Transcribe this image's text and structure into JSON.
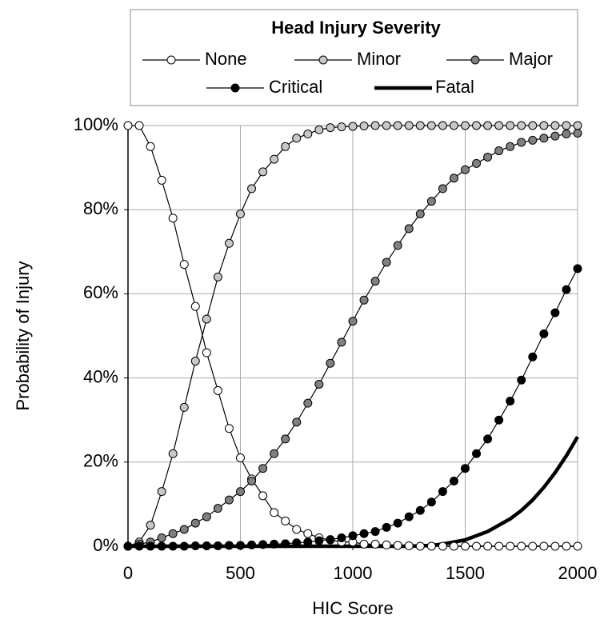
{
  "chart_data": {
    "type": "line",
    "legend_title": "Head Injury Severity",
    "x_label": "HIC Score",
    "y_label": "Probability of Injury",
    "x": [
      0,
      50,
      100,
      150,
      200,
      250,
      300,
      350,
      400,
      450,
      500,
      550,
      600,
      650,
      700,
      750,
      800,
      850,
      900,
      950,
      1000,
      1050,
      1100,
      1150,
      1200,
      1250,
      1300,
      1350,
      1400,
      1450,
      1500,
      1550,
      1600,
      1650,
      1700,
      1750,
      1800,
      1850,
      1900,
      1950,
      2000
    ],
    "series": [
      {
        "name": "None",
        "color": "#ffffff",
        "marker": true,
        "values": [
          100,
          100,
          95,
          87,
          78,
          67,
          57,
          46,
          37,
          28,
          21,
          16,
          12,
          8,
          6,
          4,
          3,
          2,
          1.5,
          1,
          1,
          0.5,
          0.5,
          0.3,
          0.2,
          0.1,
          0,
          0,
          0,
          0,
          0,
          0,
          0,
          0,
          0,
          0,
          0,
          0,
          0,
          0,
          0
        ]
      },
      {
        "name": "Minor",
        "color": "#c8c8c8",
        "marker": true,
        "values": [
          0,
          1,
          5,
          13,
          22,
          33,
          44,
          54,
          64,
          72,
          79,
          85,
          89,
          92,
          95,
          97,
          98,
          99,
          99.5,
          99.7,
          99.8,
          99.9,
          100,
          100,
          100,
          100,
          100,
          100,
          100,
          100,
          100,
          100,
          100,
          100,
          100,
          100,
          100,
          100,
          100,
          100,
          100
        ]
      },
      {
        "name": "Major",
        "color": "#808080",
        "marker": true,
        "values": [
          0,
          0.5,
          1,
          2,
          3,
          4,
          5.5,
          7,
          9,
          11,
          13,
          15.5,
          18.5,
          22,
          25.5,
          29.5,
          34,
          38.5,
          43.5,
          48.5,
          53.5,
          58.5,
          63,
          67.5,
          71.5,
          75.5,
          79,
          82,
          85,
          87.5,
          89.5,
          91,
          92.5,
          94,
          95,
          96,
          96.5,
          97,
          97.5,
          98,
          98.2
        ]
      },
      {
        "name": "Critical",
        "color": "#000000",
        "marker": true,
        "values": [
          0,
          0,
          0,
          0,
          0,
          0,
          0.1,
          0.1,
          0.1,
          0.2,
          0.2,
          0.3,
          0.4,
          0.5,
          0.6,
          0.8,
          1,
          1.3,
          1.6,
          2,
          2.5,
          3,
          3.5,
          4.5,
          5.5,
          7,
          8.5,
          10.5,
          13,
          15.5,
          18.5,
          22,
          25.5,
          30,
          34.5,
          39.5,
          45,
          50.5,
          55.5,
          61,
          66
        ]
      },
      {
        "name": "Fatal",
        "color": "#000000",
        "marker": false,
        "values": [
          0,
          0,
          0,
          0,
          0,
          0,
          0,
          0,
          0,
          0,
          0,
          0,
          0,
          0,
          0,
          0,
          0,
          0,
          0,
          0,
          0,
          0,
          0,
          0,
          0,
          0,
          0.1,
          0.2,
          0.5,
          1,
          1.5,
          2.5,
          3.5,
          5,
          6.5,
          8.5,
          11,
          14,
          17.5,
          21.5,
          26
        ]
      }
    ],
    "xlim": [
      0,
      2000
    ],
    "xticks": [
      0,
      500,
      1000,
      1500,
      2000
    ],
    "ylim": [
      0,
      100
    ],
    "yticks": [
      {
        "value": 0,
        "label": "0%"
      },
      {
        "value": 20,
        "label": "20%"
      },
      {
        "value": 40,
        "label": "40%"
      },
      {
        "value": 60,
        "label": "60%"
      },
      {
        "value": 80,
        "label": "80%"
      },
      {
        "value": 100,
        "label": "100%"
      }
    ],
    "grid": true,
    "legend": "top"
  }
}
